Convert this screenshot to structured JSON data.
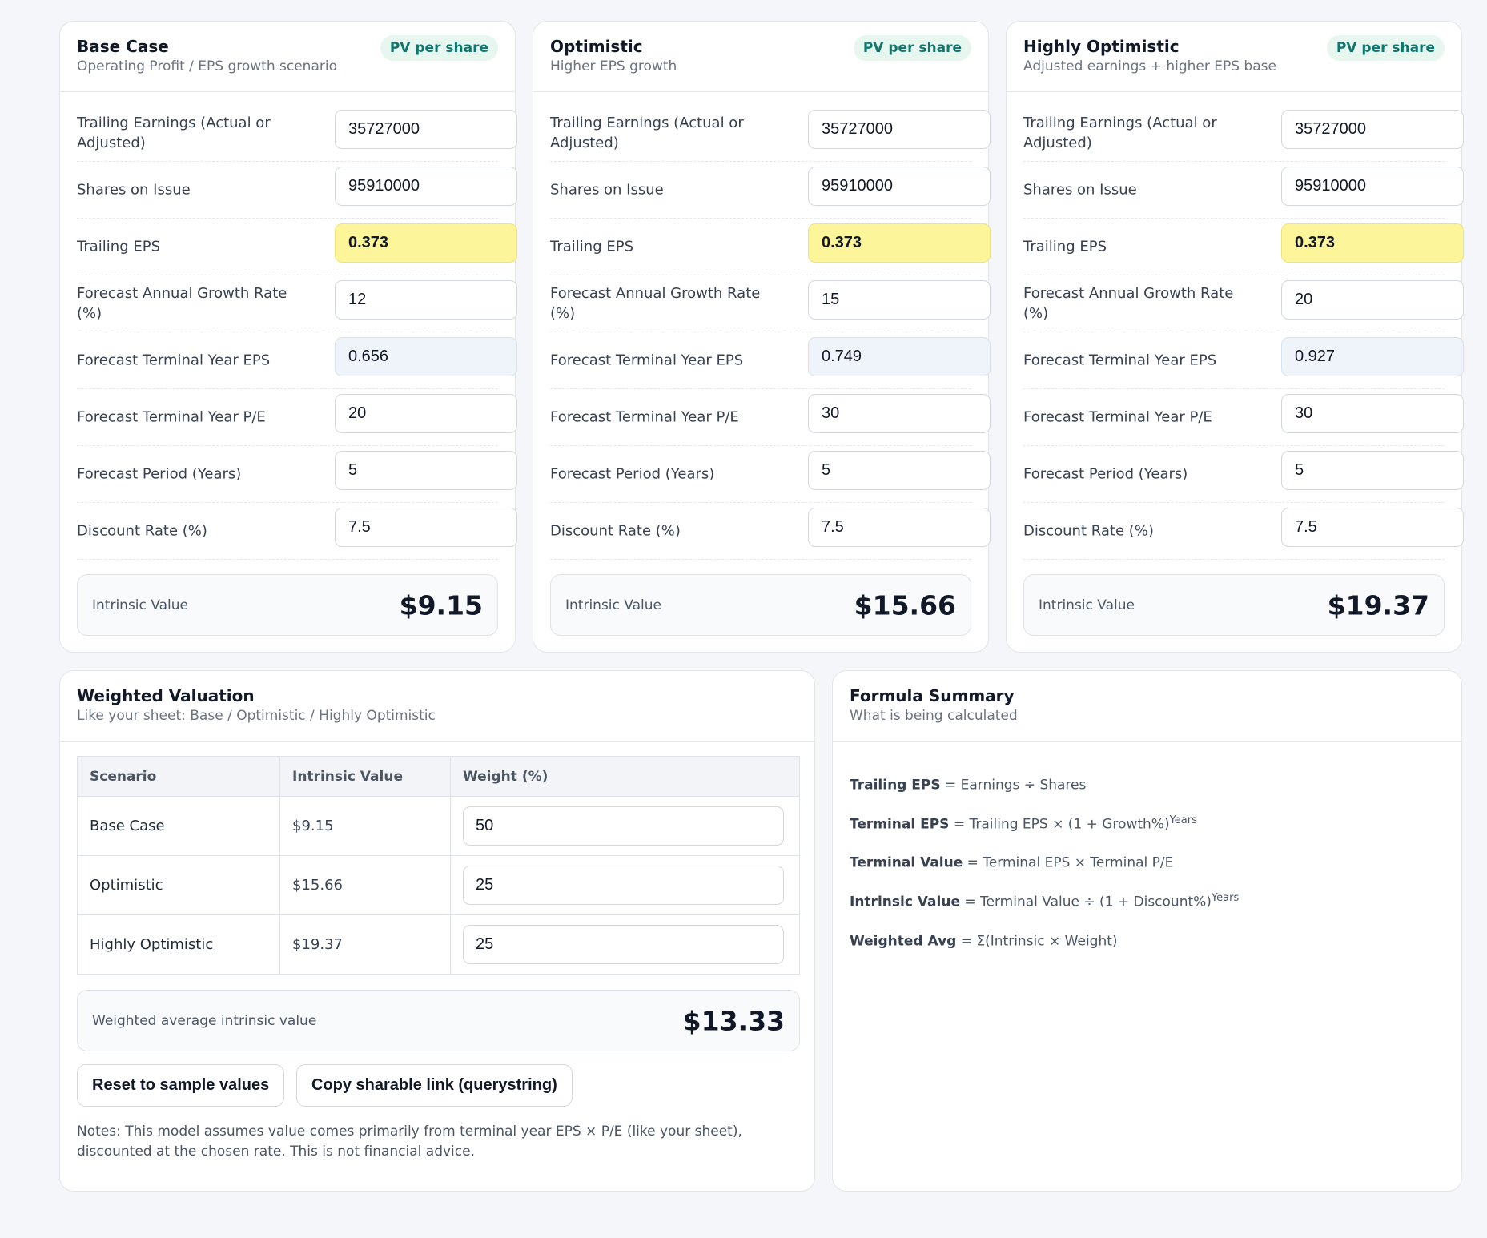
{
  "scenarios": [
    {
      "title": "Base Case",
      "subtitle": "Operating Profit / EPS growth scenario",
      "badge": "PV per share",
      "earnings": "35727000",
      "shares": "95910000",
      "trailing_eps": "0.373",
      "growth": "12",
      "terminal_eps": "0.656",
      "terminal_pe": "20",
      "period": "5",
      "discount": "7.5",
      "intrinsic": "$9.15"
    },
    {
      "title": "Optimistic",
      "subtitle": "Higher EPS growth",
      "badge": "PV per share",
      "earnings": "35727000",
      "shares": "95910000",
      "trailing_eps": "0.373",
      "growth": "15",
      "terminal_eps": "0.749",
      "terminal_pe": "30",
      "period": "5",
      "discount": "7.5",
      "intrinsic": "$15.66"
    },
    {
      "title": "Highly Optimistic",
      "subtitle": "Adjusted earnings + higher EPS base",
      "badge": "PV per share",
      "earnings": "35727000",
      "shares": "95910000",
      "trailing_eps": "0.373",
      "growth": "20",
      "terminal_eps": "0.927",
      "terminal_pe": "30",
      "period": "5",
      "discount": "7.5",
      "intrinsic": "$19.37"
    }
  ],
  "labels": {
    "earnings": "Trailing Earnings (Actual or Adjusted)",
    "shares": "Shares on Issue",
    "trailing_eps": "Trailing EPS",
    "growth": "Forecast Annual Growth Rate (%)",
    "terminal_eps": "Forecast Terminal Year EPS",
    "terminal_pe": "Forecast Terminal Year P/E",
    "period": "Forecast Period (Years)",
    "discount": "Discount Rate (%)",
    "intrinsic": "Intrinsic Value"
  },
  "weighted": {
    "title": "Weighted Valuation",
    "subtitle": "Like your sheet: Base / Optimistic / Highly Optimistic",
    "headers": [
      "Scenario",
      "Intrinsic Value",
      "Weight (%)"
    ],
    "rows": [
      {
        "scenario": "Base Case",
        "value": "$9.15",
        "weight": "50"
      },
      {
        "scenario": "Optimistic",
        "value": "$15.66",
        "weight": "25"
      },
      {
        "scenario": "Highly Optimistic",
        "value": "$19.37",
        "weight": "25"
      }
    ],
    "result_label": "Weighted average intrinsic value",
    "result_value": "$13.33",
    "reset_label": "Reset to sample values",
    "copy_label": "Copy sharable link (querystring)",
    "notes": "Notes: This model assumes value comes primarily from terminal year EPS × P/E (like your sheet), discounted at the chosen rate. This is not financial advice."
  },
  "formula": {
    "title": "Formula Summary",
    "subtitle": "What is being calculated",
    "lines": [
      {
        "term": "Trailing EPS",
        "expr": " = Earnings ÷ Shares",
        "sup": ""
      },
      {
        "term": "Terminal EPS",
        "expr": " = Trailing EPS × (1 + Growth%)",
        "sup": "Years"
      },
      {
        "term": "Terminal Value",
        "expr": " = Terminal EPS × Terminal P/E",
        "sup": ""
      },
      {
        "term": "Intrinsic Value",
        "expr": " = Terminal Value ÷ (1 + Discount%)",
        "sup": "Years"
      },
      {
        "term": "Weighted Avg",
        "expr": " = Σ(Intrinsic × Weight)",
        "sup": ""
      }
    ]
  },
  "colors": {
    "badge_bg": "#e7f6ef",
    "badge_text": "#0f766e",
    "derived_field": "#fdf59a",
    "calc_field": "#eff4fb"
  }
}
